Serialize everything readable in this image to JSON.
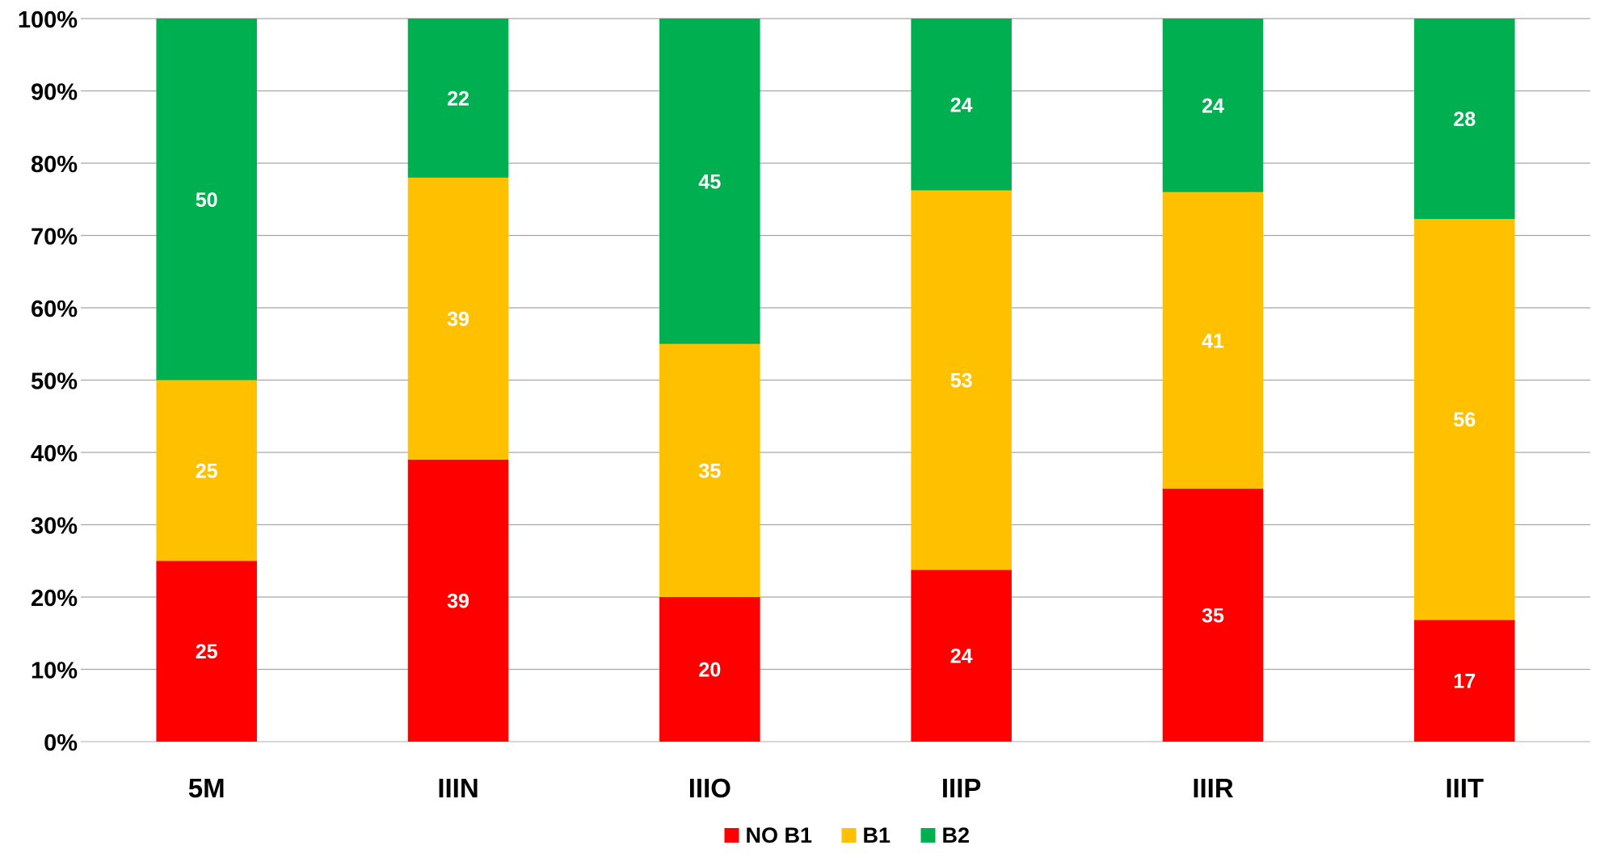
{
  "chart_data": {
    "type": "bar",
    "stacked": "percent",
    "categories": [
      "5M",
      "IIIN",
      "IIIO",
      "IIIP",
      "IIIR",
      "IIIT"
    ],
    "series": [
      {
        "name": "NO B1",
        "color": "#FF0000",
        "values": [
          25,
          39,
          20,
          24,
          35,
          17
        ]
      },
      {
        "name": "B1",
        "color": "#FFC000",
        "values": [
          25,
          39,
          35,
          53,
          41,
          56
        ]
      },
      {
        "name": "B2",
        "color": "#00B050",
        "values": [
          50,
          22,
          45,
          24,
          24,
          28
        ]
      }
    ],
    "title": "",
    "xlabel": "",
    "ylabel": "",
    "ylim": [
      0,
      100
    ],
    "y_ticks": [
      "0%",
      "10%",
      "20%",
      "30%",
      "40%",
      "50%",
      "60%",
      "70%",
      "80%",
      "90%",
      "100%"
    ],
    "grid": true,
    "legend_position": "bottom"
  }
}
